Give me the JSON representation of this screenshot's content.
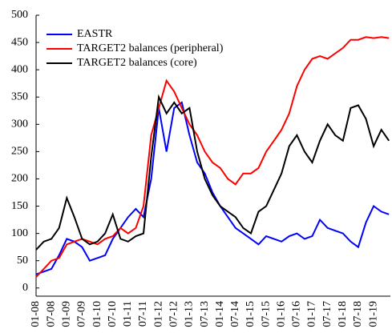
{
  "chart_data": {
    "type": "line",
    "categories": [
      "01-08",
      null,
      "07-08",
      null,
      "01-09",
      null,
      "07-09",
      null,
      "01-10",
      null,
      "07-10",
      null,
      "01-11",
      null,
      "07-11",
      null,
      "01-12",
      null,
      "07-12",
      null,
      "01-13",
      null,
      "07-13",
      null,
      "01-14",
      null,
      "07-14",
      null,
      "01-15",
      null,
      "07-15",
      null,
      "01-16",
      null,
      "07-16",
      null,
      "01-17",
      null,
      "07-17",
      null,
      "01-18",
      null,
      "07-18",
      null,
      "01-19",
      null,
      null
    ],
    "series": [
      {
        "name": "EASTR",
        "color": "#0000ff",
        "values": [
          25,
          30,
          35,
          60,
          90,
          85,
          75,
          50,
          55,
          60,
          90,
          110,
          130,
          145,
          130,
          200,
          330,
          250,
          330,
          340,
          280,
          230,
          210,
          175,
          150,
          130,
          110,
          100,
          90,
          80,
          95,
          90,
          85,
          95,
          100,
          90,
          95,
          125,
          110,
          105,
          100,
          85,
          75,
          120,
          150,
          140,
          135
        ]
      },
      {
        "name": "TARGET2 balances (peripheral)",
        "color": "#ff0000",
        "values": [
          20,
          35,
          50,
          55,
          80,
          85,
          90,
          85,
          80,
          90,
          95,
          110,
          100,
          110,
          150,
          280,
          330,
          380,
          360,
          330,
          300,
          280,
          250,
          230,
          220,
          200,
          190,
          210,
          210,
          220,
          250,
          270,
          290,
          320,
          370,
          400,
          420,
          425,
          420,
          430,
          440,
          455,
          455,
          460,
          458,
          460,
          458
        ]
      },
      {
        "name": "TARGET2 balances (core)",
        "color": "#000000",
        "values": [
          70,
          85,
          90,
          110,
          165,
          130,
          90,
          80,
          85,
          100,
          135,
          90,
          85,
          95,
          100,
          240,
          350,
          320,
          340,
          320,
          330,
          250,
          200,
          170,
          150,
          140,
          130,
          110,
          100,
          140,
          150,
          180,
          210,
          260,
          280,
          250,
          230,
          270,
          300,
          280,
          270,
          330,
          335,
          310,
          260,
          290,
          270
        ]
      }
    ],
    "ylim": [
      -15,
      500
    ],
    "yticks": [
      0,
      50,
      100,
      150,
      200,
      250,
      300,
      350,
      400,
      450,
      500
    ],
    "legend": "upper left"
  }
}
